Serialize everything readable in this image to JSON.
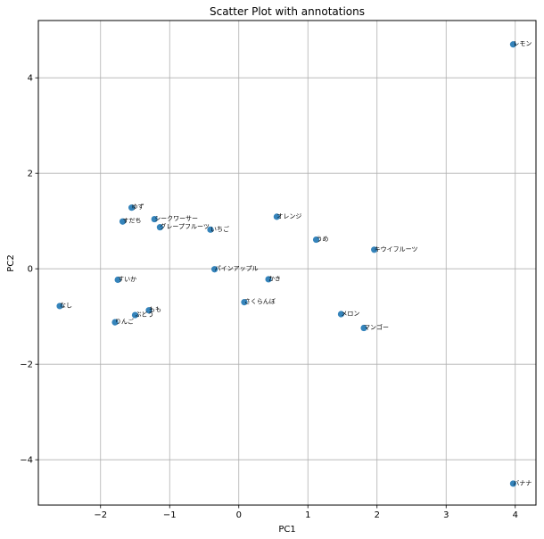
{
  "chart_data": {
    "type": "scatter",
    "title": "Scatter Plot with annotations",
    "xlabel": "PC1",
    "ylabel": "PC2",
    "xlim": [
      -2.9,
      4.3
    ],
    "ylim": [
      -4.95,
      5.2
    ],
    "xticks": [
      -2,
      -1,
      0,
      1,
      2,
      3,
      4
    ],
    "yticks": [
      -4,
      -2,
      0,
      2,
      4
    ],
    "grid": true,
    "marker_color": "#1f77b4",
    "points": [
      {
        "label": "レモン",
        "x": 3.97,
        "y": 4.7
      },
      {
        "label": "ゆず",
        "x": -1.55,
        "y": 1.28
      },
      {
        "label": "シークワーサー",
        "x": -1.22,
        "y": 1.04
      },
      {
        "label": "すだち",
        "x": -1.68,
        "y": 0.99
      },
      {
        "label": "グレープフルーツ",
        "x": -1.14,
        "y": 0.87
      },
      {
        "label": "いちご",
        "x": -0.41,
        "y": 0.82
      },
      {
        "label": "オレンジ",
        "x": 0.55,
        "y": 1.09
      },
      {
        "label": "うめ",
        "x": 1.12,
        "y": 0.61
      },
      {
        "label": "キウイフルーツ",
        "x": 1.96,
        "y": 0.4
      },
      {
        "label": "パインアップル",
        "x": -0.35,
        "y": -0.01
      },
      {
        "label": "すいか",
        "x": -1.75,
        "y": -0.23
      },
      {
        "label": "かき",
        "x": 0.43,
        "y": -0.22
      },
      {
        "label": "さくらんぼ",
        "x": 0.08,
        "y": -0.7
      },
      {
        "label": "なし",
        "x": -2.59,
        "y": -0.78
      },
      {
        "label": "もも",
        "x": -1.3,
        "y": -0.87
      },
      {
        "label": "ぶどう",
        "x": -1.5,
        "y": -0.97
      },
      {
        "label": "メロン",
        "x": 1.48,
        "y": -0.95
      },
      {
        "label": "りんご",
        "x": -1.79,
        "y": -1.12
      },
      {
        "label": "マンゴー",
        "x": 1.81,
        "y": -1.24
      },
      {
        "label": "バナナ",
        "x": 3.97,
        "y": -4.5
      }
    ]
  }
}
